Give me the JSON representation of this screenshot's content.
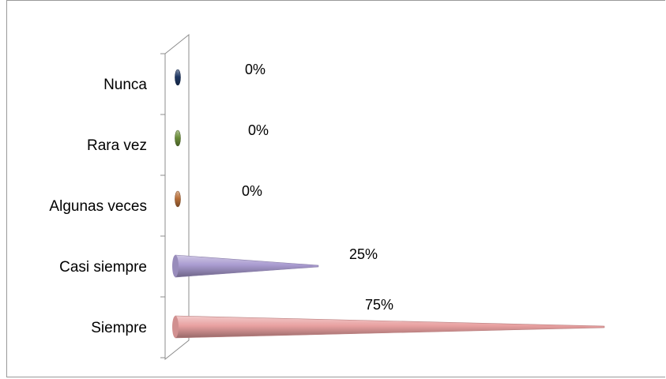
{
  "chart_data": {
    "type": "bar",
    "orientation": "horizontal",
    "style": "3d-cone",
    "categories": [
      "Nunca",
      "Rara vez",
      "Algunas veces",
      "Casi siempre",
      "Siempre"
    ],
    "values": [
      0,
      0,
      0,
      25,
      75
    ],
    "value_labels": [
      "0%",
      "0%",
      "0%",
      "25%",
      "75%"
    ],
    "value_unit": "%",
    "xlim": [
      0,
      100
    ],
    "grid": false,
    "legend": "none",
    "title": "",
    "xlabel": "",
    "ylabel": "",
    "colors": [
      "#1f3864",
      "#6b8e3a",
      "#b8703a",
      "#a99bd0",
      "#e8a0a0"
    ]
  }
}
